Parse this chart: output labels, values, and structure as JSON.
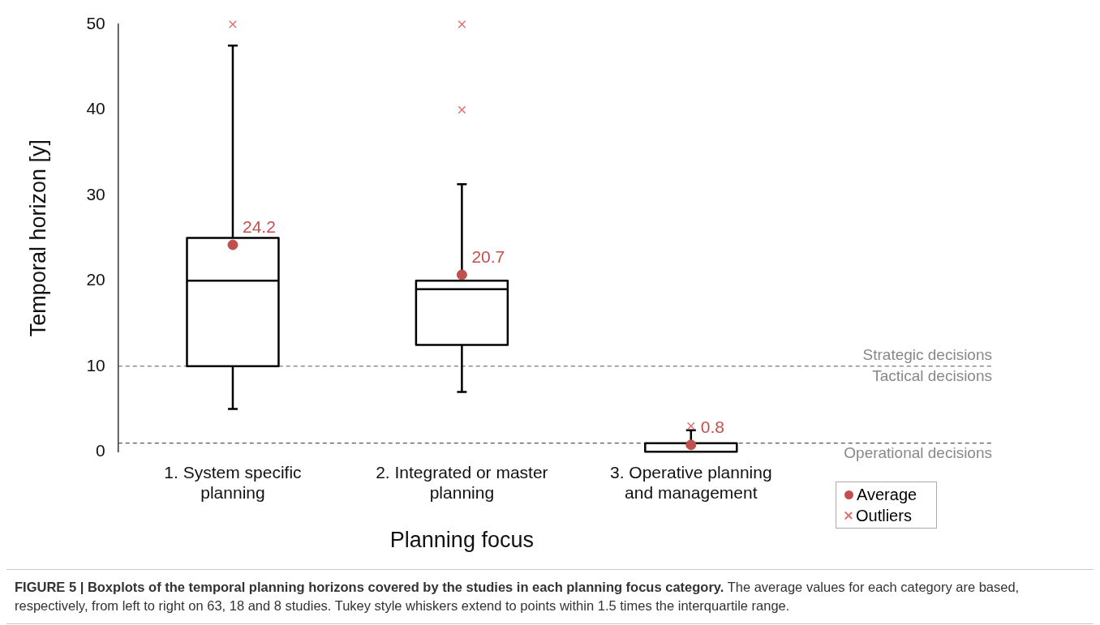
{
  "chart_data": {
    "type": "box",
    "title": "FIGURE 5 | Boxplots of the temporal planning horizons covered by the studies in each planning focus category.",
    "xlabel": "Planning focus",
    "ylabel": "Temporal horizon [y]",
    "categories": [
      "1. System specific planning",
      "2. Integrated or master planning",
      "3. Operative planning and management"
    ],
    "boxes": [
      {
        "low": 5,
        "q1": 10,
        "median": 20,
        "q3": 25,
        "high": 47.5
      },
      {
        "low": 7,
        "q1": 12.5,
        "median": 19,
        "q3": 20,
        "high": 31.3
      },
      {
        "low": 0,
        "q1": 0,
        "median": 0,
        "q3": 1,
        "high": 2.5
      }
    ],
    "series": [
      {
        "name": "Average",
        "type": "scatter",
        "marker": "circle",
        "color": "#c0504d",
        "x": [
          "1. System specific planning",
          "2. Integrated or master planning",
          "3. Operative planning and management"
        ],
        "values": [
          24.2,
          20.7,
          0.8
        ],
        "value_labels": [
          "24.2",
          "20.7",
          "0.8"
        ]
      },
      {
        "name": "Outliers",
        "type": "scatter",
        "marker": "cross",
        "color": "#e07070",
        "x": [
          "1. System specific planning",
          "2. Integrated or master planning",
          "2. Integrated or master planning",
          "3. Operative planning and management"
        ],
        "values": [
          50,
          50,
          40,
          3
        ]
      }
    ],
    "ylim": [
      0,
      50
    ],
    "yticks": [
      0,
      10,
      20,
      30,
      40,
      50
    ],
    "grid": false,
    "legend": "bottom right",
    "ref_lines": [
      {
        "axis": "y",
        "value": 10,
        "color": "#555555",
        "line_style": "dashed"
      },
      {
        "axis": "y",
        "value": 1,
        "color": "#555555",
        "line_style": "dashed"
      }
    ],
    "annotations": [
      {
        "text": "Strategic decisions",
        "y": 10
      },
      {
        "text": "Tactical decisions",
        "y": 10
      },
      {
        "text": "Operational decisions",
        "y": 1
      },
      "The average values for each category are based, respectively, from left to right on 63, 18 and 8 studies. Tukey style whiskers extend to points within 1.5 times the interquartile range."
    ]
  }
}
